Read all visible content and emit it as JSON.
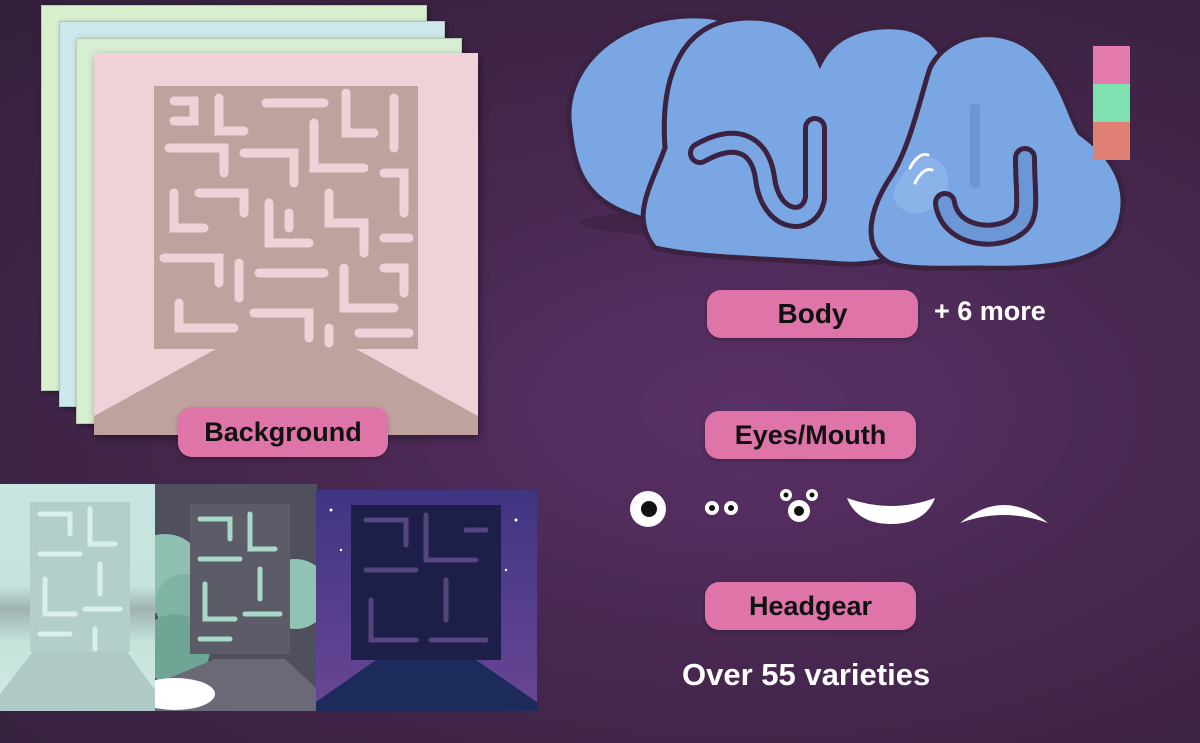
{
  "labels": {
    "background": "Background",
    "body": "Body",
    "body_more": "+ 6 more",
    "eyes_mouth": "Eyes/Mouth",
    "headgear": "Headgear",
    "varieties": "Over 55 varieties"
  },
  "colors": {
    "page_background": "#47274f",
    "pill": "#df74a8",
    "body_blue": "#7aa7e3",
    "body_outline": "#3a2240",
    "swatch_pink": "#e47aae",
    "swatch_green": "#7ee2b0",
    "swatch_salmon": "#e08074",
    "card_pink": "#f0d1d8",
    "card_blue": "#cde8ec",
    "card_green": "#d9f0cf",
    "maze_brown": "#bfa19e"
  },
  "background_thumbnails": [
    "light-cyan",
    "cloudy-gray",
    "night-purple"
  ],
  "eye_mouth_options": [
    "single-eye-icon",
    "two-eyes-icon",
    "three-eyes-icon",
    "smile-mouth-icon",
    "frown-mouth-icon"
  ]
}
